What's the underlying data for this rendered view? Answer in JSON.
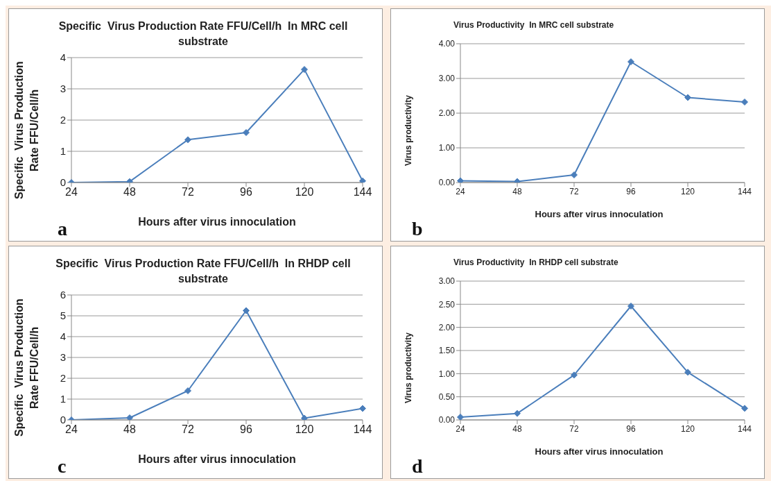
{
  "chart_data": [
    {
      "type": "line",
      "title": "Specific  Virus Production Rate FFU/Cell/h  In MRC cell substrate",
      "xlabel": "Hours after virus innoculation",
      "ylabel": "Specific  Virus Production Rate FFU/Cell/h",
      "categories": [
        "24",
        "48",
        "72",
        "96",
        "120",
        "144"
      ],
      "series": [
        {
          "color": "#4a7ebb",
          "values": [
            0,
            0.03,
            1.37,
            1.6,
            3.62,
            0.05
          ]
        }
      ],
      "ylim": [
        0,
        4
      ],
      "yticks": [
        0,
        1,
        2,
        3,
        4
      ],
      "grid": "y",
      "marker": "diamond",
      "line_style": "solid",
      "annotations": [
        "a"
      ]
    },
    {
      "type": "line",
      "title": "Virus Productivity  In MRC cell substrate",
      "xlabel": "Hours after virus innoculation",
      "ylabel": "Virus productivity",
      "categories": [
        "24",
        "48",
        "72",
        "96",
        "120",
        "144"
      ],
      "series": [
        {
          "color": "#4a7ebb",
          "values": [
            0.05,
            0.03,
            0.22,
            3.48,
            2.45,
            2.32
          ]
        }
      ],
      "ylim": [
        0,
        4
      ],
      "yticks": [
        {
          "value": 0,
          "label": "0.00"
        },
        {
          "value": 1,
          "label": "1.00"
        },
        {
          "value": 2,
          "label": "2.00"
        },
        {
          "value": 3,
          "label": "3.00"
        },
        {
          "value": 4,
          "label": "4.00"
        }
      ],
      "grid": "y",
      "marker": "diamond",
      "line_style": "solid",
      "annotations": [
        "b"
      ]
    },
    {
      "type": "line",
      "title": "Specific  Virus Production Rate FFU/Cell/h  In RHDP cell substrate",
      "xlabel": "Hours after virus innoculation",
      "ylabel": "Specific  Virus Production Rate FFU/Cell/h",
      "categories": [
        "24",
        "48",
        "72",
        "96",
        "120",
        "144"
      ],
      "series": [
        {
          "color": "#4a7ebb",
          "values": [
            0,
            0.1,
            1.4,
            5.25,
            0.08,
            0.55
          ]
        }
      ],
      "ylim": [
        0,
        6
      ],
      "yticks": [
        0,
        1,
        2,
        3,
        4,
        5,
        6
      ],
      "grid": "y",
      "marker": "diamond",
      "line_style": "solid",
      "annotations": [
        "c"
      ]
    },
    {
      "type": "line",
      "title": "Virus Productivity  In RHDP cell substrate",
      "xlabel": "Hours after virus innoculation",
      "ylabel": "Virus productivity",
      "categories": [
        "24",
        "48",
        "72",
        "96",
        "120",
        "144"
      ],
      "series": [
        {
          "color": "#4a7ebb",
          "values": [
            0.06,
            0.14,
            0.97,
            2.46,
            1.03,
            0.25
          ]
        }
      ],
      "ylim": [
        0,
        3
      ],
      "yticks": [
        {
          "value": 0,
          "label": "0.00"
        },
        {
          "value": 0.5,
          "label": "0.50"
        },
        {
          "value": 1,
          "label": "1.00"
        },
        {
          "value": 1.5,
          "label": "1.50"
        },
        {
          "value": 2,
          "label": "2.00"
        },
        {
          "value": 2.5,
          "label": "2.50"
        },
        {
          "value": 3,
          "label": "3.00"
        }
      ],
      "grid": "y",
      "marker": "diamond",
      "line_style": "solid",
      "annotations": [
        "d"
      ]
    }
  ]
}
